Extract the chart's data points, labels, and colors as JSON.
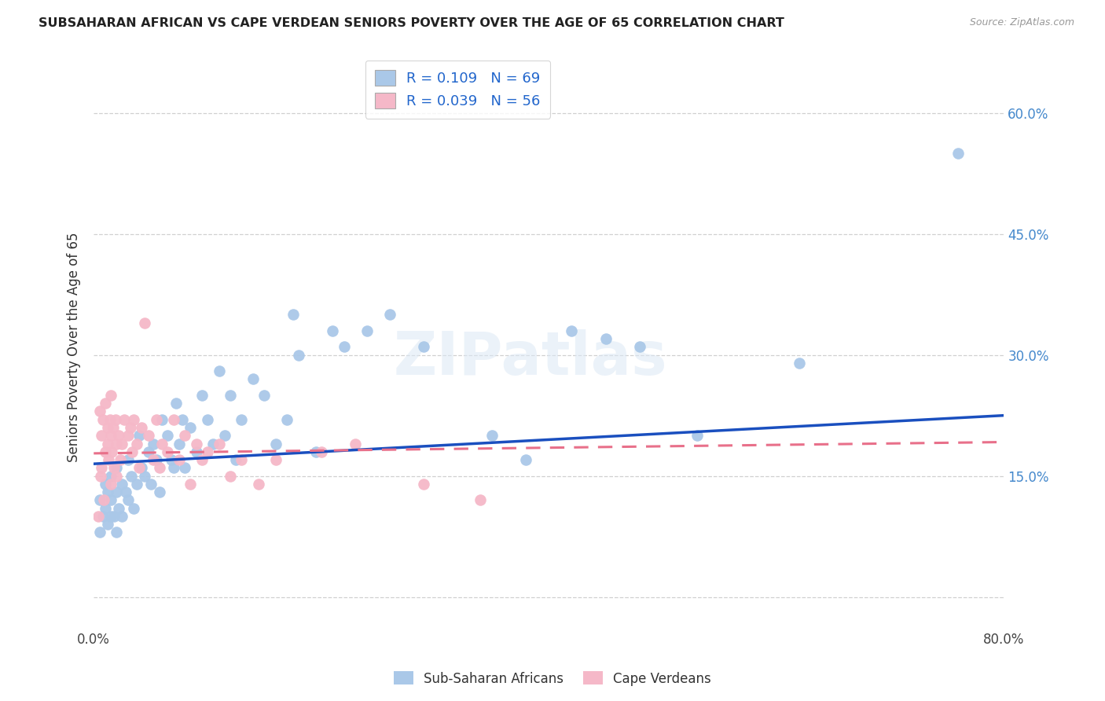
{
  "title": "SUBSAHARAN AFRICAN VS CAPE VERDEAN SENIORS POVERTY OVER THE AGE OF 65 CORRELATION CHART",
  "source": "Source: ZipAtlas.com",
  "ylabel": "Seniors Poverty Over the Age of 65",
  "ytick_values": [
    0.0,
    0.15,
    0.3,
    0.45,
    0.6
  ],
  "ytick_labels": [
    "",
    "15.0%",
    "30.0%",
    "45.0%",
    "60.0%"
  ],
  "xlim": [
    0.0,
    0.8
  ],
  "ylim": [
    -0.04,
    0.66
  ],
  "blue_R": 0.109,
  "blue_N": 69,
  "pink_R": 0.039,
  "pink_N": 56,
  "blue_color": "#aac8e8",
  "pink_color": "#f5b8c8",
  "blue_line_color": "#1a4fbf",
  "pink_line_color": "#e8708a",
  "legend_label_blue": "Sub-Saharan Africans",
  "legend_label_pink": "Cape Verdeans",
  "watermark": "ZIPatlas",
  "blue_scatter_x": [
    0.005,
    0.005,
    0.008,
    0.01,
    0.01,
    0.012,
    0.012,
    0.015,
    0.015,
    0.015,
    0.018,
    0.02,
    0.02,
    0.02,
    0.022,
    0.025,
    0.025,
    0.028,
    0.03,
    0.03,
    0.033,
    0.035,
    0.038,
    0.04,
    0.042,
    0.045,
    0.048,
    0.05,
    0.052,
    0.055,
    0.058,
    0.06,
    0.065,
    0.068,
    0.07,
    0.072,
    0.075,
    0.078,
    0.08,
    0.085,
    0.09,
    0.095,
    0.1,
    0.105,
    0.11,
    0.115,
    0.12,
    0.125,
    0.13,
    0.14,
    0.15,
    0.16,
    0.17,
    0.175,
    0.18,
    0.195,
    0.21,
    0.22,
    0.24,
    0.26,
    0.29,
    0.35,
    0.38,
    0.42,
    0.45,
    0.48,
    0.53,
    0.62,
    0.76
  ],
  "blue_scatter_y": [
    0.12,
    0.08,
    0.1,
    0.11,
    0.14,
    0.09,
    0.13,
    0.1,
    0.12,
    0.15,
    0.1,
    0.08,
    0.13,
    0.16,
    0.11,
    0.1,
    0.14,
    0.13,
    0.12,
    0.17,
    0.15,
    0.11,
    0.14,
    0.2,
    0.16,
    0.15,
    0.18,
    0.14,
    0.19,
    0.17,
    0.13,
    0.22,
    0.2,
    0.17,
    0.16,
    0.24,
    0.19,
    0.22,
    0.16,
    0.21,
    0.18,
    0.25,
    0.22,
    0.19,
    0.28,
    0.2,
    0.25,
    0.17,
    0.22,
    0.27,
    0.25,
    0.19,
    0.22,
    0.35,
    0.3,
    0.18,
    0.33,
    0.31,
    0.33,
    0.35,
    0.31,
    0.2,
    0.17,
    0.33,
    0.32,
    0.31,
    0.2,
    0.29,
    0.55
  ],
  "pink_scatter_x": [
    0.004,
    0.005,
    0.006,
    0.007,
    0.007,
    0.008,
    0.009,
    0.01,
    0.01,
    0.012,
    0.012,
    0.013,
    0.014,
    0.015,
    0.015,
    0.015,
    0.016,
    0.017,
    0.018,
    0.019,
    0.02,
    0.02,
    0.022,
    0.023,
    0.025,
    0.027,
    0.03,
    0.032,
    0.034,
    0.035,
    0.038,
    0.04,
    0.042,
    0.045,
    0.048,
    0.052,
    0.055,
    0.058,
    0.06,
    0.065,
    0.07,
    0.075,
    0.08,
    0.085,
    0.09,
    0.095,
    0.1,
    0.11,
    0.12,
    0.13,
    0.145,
    0.16,
    0.2,
    0.23,
    0.29,
    0.34
  ],
  "pink_scatter_y": [
    0.1,
    0.23,
    0.15,
    0.2,
    0.16,
    0.22,
    0.12,
    0.18,
    0.24,
    0.21,
    0.19,
    0.17,
    0.22,
    0.14,
    0.2,
    0.25,
    0.18,
    0.21,
    0.16,
    0.22,
    0.19,
    0.15,
    0.2,
    0.17,
    0.19,
    0.22,
    0.2,
    0.21,
    0.18,
    0.22,
    0.19,
    0.16,
    0.21,
    0.34,
    0.2,
    0.17,
    0.22,
    0.16,
    0.19,
    0.18,
    0.22,
    0.17,
    0.2,
    0.14,
    0.19,
    0.17,
    0.18,
    0.19,
    0.15,
    0.17,
    0.14,
    0.17,
    0.18,
    0.19,
    0.14,
    0.12
  ],
  "blue_trendline_x": [
    0.0,
    0.8
  ],
  "blue_trendline_y": [
    0.165,
    0.225
  ],
  "pink_trendline_x": [
    0.0,
    0.8
  ],
  "pink_trendline_y": [
    0.178,
    0.192
  ]
}
